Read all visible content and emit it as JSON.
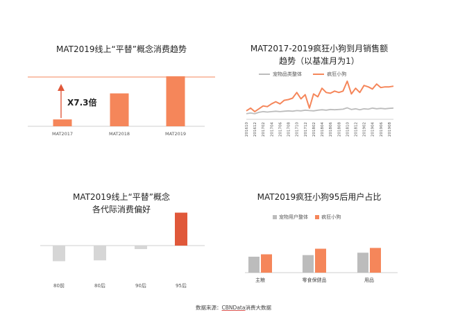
{
  "colors": {
    "orange": "#f5865a",
    "orange_dark": "#e0583a",
    "gray": "#bcbcbc",
    "gray_light": "#d6d6d6",
    "axis": "#cfcfcf"
  },
  "source": {
    "prefix": "数据来源：",
    "brand": "CBNData",
    "suffix": "消费大数据"
  },
  "chart_data": [
    {
      "type": "bar",
      "title": "MAT2019线上“平替”概念消费趋势",
      "categories": [
        "MAT2017",
        "MAT2018",
        "MAT2019"
      ],
      "values": [
        1,
        4.8,
        7.3
      ],
      "ylim": [
        0,
        8
      ],
      "annotation": "X7.3倍",
      "grid": false
    },
    {
      "type": "line",
      "title_lines": [
        "MAT2017-2019疯狂小狗到月销售额",
        "趋势（以基准月为1）"
      ],
      "x": [
        "201610",
        "201611",
        "201612",
        "201701",
        "201702",
        "201703",
        "201704",
        "201705",
        "201706",
        "201707",
        "201708",
        "201709",
        "201710",
        "201711",
        "201712",
        "201801",
        "201802",
        "201803",
        "201804",
        "201805",
        "201806",
        "201807",
        "201808",
        "201809",
        "201810",
        "201811",
        "201812",
        "201901",
        "201902",
        "201903",
        "201904",
        "201905",
        "201906",
        "201907",
        "201908",
        "201909"
      ],
      "x_tick_labels": [
        "201610",
        "201612",
        "201702",
        "201704",
        "201706",
        "201708",
        "201710",
        "201712",
        "201802",
        "201804",
        "201806",
        "201808",
        "201810",
        "201812",
        "201902",
        "201904",
        "201906",
        "201908"
      ],
      "series": [
        {
          "name": "宠物品类整体",
          "values": [
            1.0,
            1.05,
            1.0,
            1.1,
            1.15,
            1.12,
            1.15,
            1.18,
            1.15,
            1.18,
            1.2,
            1.18,
            1.22,
            1.2,
            1.25,
            1.22,
            1.2,
            1.25,
            1.28,
            1.25,
            1.3,
            1.28,
            1.3,
            1.32,
            1.42,
            1.3,
            1.35,
            1.28,
            1.35,
            1.32,
            1.4,
            1.35,
            1.38,
            1.35,
            1.38,
            1.4
          ]
        },
        {
          "name": "疯狂小狗",
          "values": [
            1.2,
            1.4,
            1.15,
            1.35,
            1.55,
            1.5,
            1.7,
            1.85,
            1.7,
            1.95,
            2.0,
            2.1,
            2.5,
            2.05,
            2.35,
            1.4,
            2.4,
            2.2,
            2.8,
            2.5,
            2.45,
            2.6,
            2.5,
            2.6,
            3.3,
            2.4,
            2.8,
            2.5,
            3.0,
            2.9,
            2.75,
            3.1,
            2.85,
            2.9,
            2.9,
            2.95
          ]
        }
      ],
      "grid": false,
      "legend_position": "top"
    },
    {
      "type": "bar",
      "title_lines": [
        "MAT2019线上“平替”概念",
        "各代际消费偏好"
      ],
      "categories": [
        "80前",
        "80后",
        "90后",
        "95后"
      ],
      "values": [
        -0.18,
        -0.17,
        -0.04,
        0.38
      ],
      "ylim": [
        -0.25,
        0.45
      ],
      "grid": false
    },
    {
      "type": "bar",
      "title": "MAT2019疯狂小狗95后用户占比",
      "categories": [
        "主粮",
        "零食保健品",
        "用品"
      ],
      "series": [
        {
          "name": "宠物用户整体",
          "values": [
            0.2,
            0.22,
            0.25
          ]
        },
        {
          "name": "疯狂小狗",
          "values": [
            0.23,
            0.3,
            0.31
          ]
        }
      ],
      "ylim": [
        0,
        0.4
      ],
      "grid": false,
      "legend_position": "top"
    }
  ]
}
